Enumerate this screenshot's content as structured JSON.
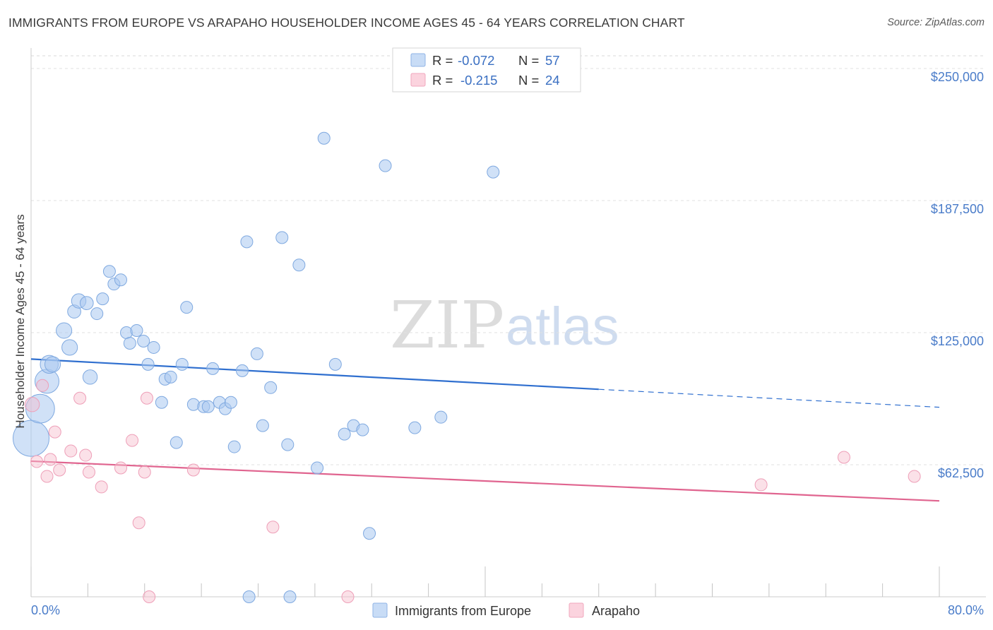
{
  "header": {
    "title": "IMMIGRANTS FROM EUROPE VS ARAPAHO HOUSEHOLDER INCOME AGES 45 - 64 YEARS CORRELATION CHART",
    "source": "Source: ZipAtlas.com"
  },
  "watermark": {
    "zip": "ZIP",
    "atlas": "atlas"
  },
  "legend": {
    "rows": [
      {
        "r_label": "R =",
        "r_value": "-0.072",
        "n_label": "N =",
        "n_value": "57",
        "color": "#a9c8f0"
      },
      {
        "r_label": "R =",
        "r_value": "-0.215",
        "n_label": "N =",
        "n_value": "24",
        "color": "#f6bccd"
      }
    ]
  },
  "bottom_legend": [
    {
      "label": "Immigrants from Europe",
      "color": "#a9c8f0"
    },
    {
      "label": "Arapaho",
      "color": "#f6bccd"
    }
  ],
  "chart_data": {
    "type": "scatter",
    "title": "IMMIGRANTS FROM EUROPE VS ARAPAHO HOUSEHOLDER INCOME AGES 45 - 64 YEARS CORRELATION CHART",
    "xlabel": "",
    "ylabel": "Householder Income Ages 45 - 64 years",
    "xlim": [
      0,
      80
    ],
    "ylim": [
      0,
      262500
    ],
    "x_tick_labels": [
      "0.0%",
      "80.0%"
    ],
    "y_ticks": [
      62500,
      125000,
      187500,
      250000
    ],
    "y_tick_labels": [
      "$62,500",
      "$125,000",
      "$187,500",
      "$250,000"
    ],
    "grid": true,
    "colors": {
      "europe": "#a9c8f0",
      "europe_line": "#2f6fcf",
      "arapaho": "#f6bccd",
      "arapaho_line": "#e0648f"
    },
    "series": [
      {
        "name": "Immigrants from Europe",
        "points": [
          [
            0.0,
            75000,
            3
          ],
          [
            0.8,
            89000,
            2.4
          ],
          [
            1.4,
            102000,
            2
          ],
          [
            1.6,
            110000,
            1.5
          ],
          [
            1.9,
            110000,
            1.3
          ],
          [
            2.9,
            126000,
            1.3
          ],
          [
            3.4,
            118000,
            1.3
          ],
          [
            3.8,
            135000,
            1.1
          ],
          [
            4.2,
            140000,
            1.2
          ],
          [
            4.9,
            139000,
            1.1
          ],
          [
            5.2,
            104000,
            1.2
          ],
          [
            5.8,
            134000,
            1.0
          ],
          [
            6.3,
            141000,
            1.0
          ],
          [
            6.9,
            154000,
            1.0
          ],
          [
            7.3,
            148000,
            1.0
          ],
          [
            7.9,
            150000,
            1.0
          ],
          [
            8.4,
            125000,
            1.0
          ],
          [
            8.7,
            120000,
            1.0
          ],
          [
            9.3,
            126000,
            1.0
          ],
          [
            9.9,
            121000,
            1.0
          ],
          [
            10.3,
            110000,
            1.0
          ],
          [
            10.8,
            118000,
            1.0
          ],
          [
            11.5,
            92000,
            1.0
          ],
          [
            11.8,
            103000,
            1.0
          ],
          [
            12.3,
            104000,
            1.0
          ],
          [
            12.8,
            73000,
            1.0
          ],
          [
            13.3,
            110000,
            1.0
          ],
          [
            13.7,
            137000,
            1.0
          ],
          [
            14.3,
            91000,
            1.0
          ],
          [
            15.2,
            90000,
            1.0
          ],
          [
            15.6,
            90000,
            1.0
          ],
          [
            16.0,
            108000,
            1.0
          ],
          [
            16.6,
            92000,
            1.0
          ],
          [
            17.1,
            89000,
            1.0
          ],
          [
            17.6,
            92000,
            1.0
          ],
          [
            17.9,
            71000,
            1.0
          ],
          [
            18.6,
            107000,
            1.0
          ],
          [
            19.0,
            168000,
            1.0
          ],
          [
            19.2,
            0,
            1.0
          ],
          [
            19.9,
            115000,
            1.0
          ],
          [
            20.4,
            81000,
            1.0
          ],
          [
            21.1,
            99000,
            1.0
          ],
          [
            22.1,
            170000,
            1.0
          ],
          [
            22.6,
            72000,
            1.0
          ],
          [
            22.8,
            0,
            1.0
          ],
          [
            23.6,
            157000,
            1.0
          ],
          [
            25.2,
            61000,
            1.0
          ],
          [
            25.8,
            217000,
            1.0
          ],
          [
            26.8,
            110000,
            1.0
          ],
          [
            27.6,
            77000,
            1.0
          ],
          [
            28.4,
            81000,
            1.0
          ],
          [
            29.2,
            79000,
            1.0
          ],
          [
            29.8,
            30000,
            1.0
          ],
          [
            31.2,
            204000,
            1.0
          ],
          [
            33.8,
            80000,
            1.0
          ],
          [
            36.1,
            85000,
            1.0
          ],
          [
            40.7,
            201000,
            1.0
          ]
        ]
      },
      {
        "name": "Arapaho",
        "points": [
          [
            0.1,
            91000,
            1.2
          ],
          [
            0.5,
            64000,
            1.0
          ],
          [
            1.0,
            100000,
            1.0
          ],
          [
            1.4,
            57000,
            1.0
          ],
          [
            1.7,
            65000,
            1.0
          ],
          [
            2.1,
            78000,
            1.0
          ],
          [
            2.5,
            60000,
            1.0
          ],
          [
            3.5,
            69000,
            1.0
          ],
          [
            4.3,
            94000,
            1.0
          ],
          [
            4.8,
            67000,
            1.0
          ],
          [
            5.1,
            59000,
            1.0
          ],
          [
            6.2,
            52000,
            1.0
          ],
          [
            7.9,
            61000,
            1.0
          ],
          [
            8.9,
            74000,
            1.0
          ],
          [
            9.5,
            35000,
            1.0
          ],
          [
            10.0,
            59000,
            1.0
          ],
          [
            10.2,
            94000,
            1.0
          ],
          [
            10.4,
            0,
            1.0
          ],
          [
            14.3,
            60000,
            1.0
          ],
          [
            21.3,
            33000,
            1.0
          ],
          [
            27.9,
            0,
            1.0
          ],
          [
            64.3,
            53000,
            1.0
          ],
          [
            71.6,
            66000,
            1.0
          ],
          [
            77.8,
            57000,
            1.0
          ]
        ]
      }
    ],
    "trendlines": [
      {
        "series": "Immigrants from Europe",
        "x": [
          0,
          50,
          80
        ],
        "y": [
          112500,
          98200,
          89700
        ],
        "dashed_from_x": 50
      },
      {
        "series": "Arapaho",
        "x": [
          0,
          80
        ],
        "y": [
          64200,
          45400
        ]
      }
    ]
  }
}
